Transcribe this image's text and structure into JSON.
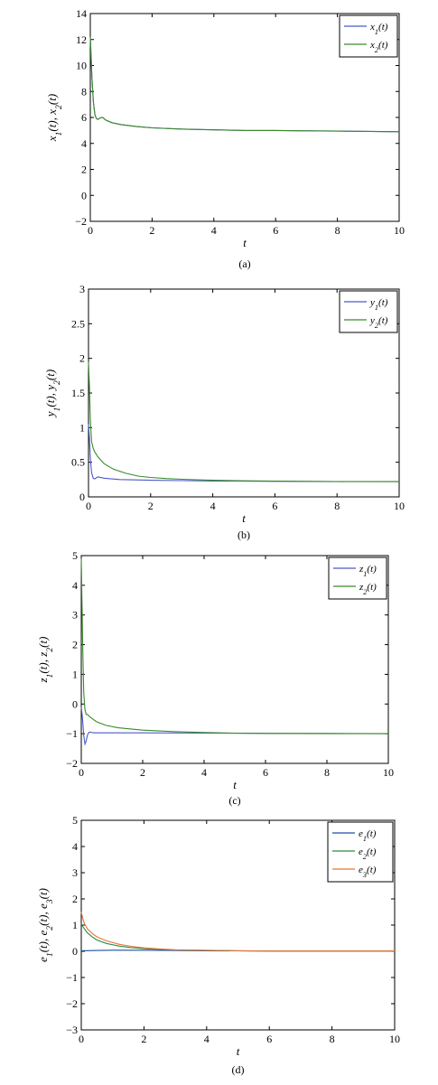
{
  "chart_data": [
    {
      "type": "line",
      "caption": "(a)",
      "xlabel": "t",
      "ylabel": "x1(t), x2(t)",
      "xlim": [
        0,
        10
      ],
      "ylim": [
        -2,
        14
      ],
      "xticks": [
        0,
        2,
        4,
        6,
        8,
        10
      ],
      "yticks": [
        -2,
        0,
        2,
        4,
        6,
        8,
        10,
        12,
        14
      ],
      "legend_position": "top-right",
      "series": [
        {
          "name": "x1(t)",
          "color": "#4a5ac8",
          "x": [
            0,
            0.02,
            0.05,
            0.1,
            0.15,
            0.2,
            0.25,
            0.3,
            0.4,
            0.5,
            0.7,
            1.0,
            1.5,
            2,
            3,
            4,
            5,
            6,
            7,
            8,
            9,
            10
          ],
          "y": [
            12.2,
            11.0,
            9.2,
            7.2,
            6.2,
            5.9,
            5.85,
            5.95,
            6.0,
            5.8,
            5.6,
            5.45,
            5.3,
            5.2,
            5.1,
            5.05,
            5.0,
            5.0,
            4.97,
            4.95,
            4.93,
            4.9
          ]
        },
        {
          "name": "x2(t)",
          "color": "#3a8a2a",
          "x": [
            0,
            0.02,
            0.05,
            0.1,
            0.15,
            0.2,
            0.25,
            0.3,
            0.4,
            0.5,
            0.7,
            1.0,
            1.5,
            2,
            3,
            4,
            5,
            6,
            7,
            8,
            9,
            10
          ],
          "y": [
            12.2,
            11.0,
            9.2,
            7.2,
            6.2,
            5.9,
            5.85,
            5.95,
            6.0,
            5.8,
            5.6,
            5.45,
            5.3,
            5.2,
            5.1,
            5.05,
            5.0,
            5.0,
            4.97,
            4.95,
            4.93,
            4.9
          ]
        }
      ]
    },
    {
      "type": "line",
      "caption": "(b)",
      "xlabel": "t",
      "ylabel": "y1(t), y2(t)",
      "xlim": [
        0,
        10
      ],
      "ylim": [
        0,
        3
      ],
      "xticks": [
        0,
        2,
        4,
        6,
        8,
        10
      ],
      "yticks": [
        0,
        0.5,
        1,
        1.5,
        2,
        2.5,
        3
      ],
      "legend_position": "top-right",
      "series": [
        {
          "name": "y1(t)",
          "color": "#4a5ac8",
          "x": [
            0,
            0.03,
            0.06,
            0.1,
            0.15,
            0.2,
            0.3,
            0.5,
            1,
            2,
            3,
            4,
            6,
            8,
            10
          ],
          "y": [
            1.05,
            0.85,
            0.55,
            0.35,
            0.27,
            0.26,
            0.29,
            0.27,
            0.25,
            0.24,
            0.235,
            0.23,
            0.225,
            0.22,
            0.22
          ]
        },
        {
          "name": "y2(t)",
          "color": "#3a8a2a",
          "x": [
            0,
            0.03,
            0.06,
            0.1,
            0.15,
            0.2,
            0.3,
            0.5,
            0.8,
            1.2,
            1.6,
            2,
            2.5,
            3,
            4,
            5,
            6,
            8,
            10
          ],
          "y": [
            1.95,
            1.6,
            1.1,
            0.8,
            0.7,
            0.65,
            0.58,
            0.48,
            0.4,
            0.34,
            0.3,
            0.28,
            0.265,
            0.255,
            0.24,
            0.232,
            0.228,
            0.222,
            0.22
          ]
        }
      ]
    },
    {
      "type": "line",
      "caption": "(c)",
      "xlabel": "t",
      "ylabel": "z1(t), z2(t)",
      "xlim": [
        0,
        10
      ],
      "ylim": [
        -2,
        5
      ],
      "xticks": [
        0,
        2,
        4,
        6,
        8,
        10
      ],
      "yticks": [
        -2,
        -1,
        0,
        1,
        2,
        3,
        4,
        5
      ],
      "legend_position": "top-right",
      "series": [
        {
          "name": "z1(t)",
          "color": "#4a5ac8",
          "x": [
            0,
            0.04,
            0.08,
            0.12,
            0.16,
            0.2,
            0.25,
            0.3,
            0.4,
            0.6,
            1,
            2,
            4,
            6,
            8,
            10
          ],
          "y": [
            -0.1,
            -0.5,
            -1.05,
            -1.35,
            -1.25,
            -1.05,
            -0.95,
            -0.95,
            -0.97,
            -0.97,
            -0.97,
            -0.97,
            -0.98,
            -0.99,
            -0.99,
            -1.0
          ]
        },
        {
          "name": "z2(t)",
          "color": "#3a8a2a",
          "x": [
            0,
            0.02,
            0.05,
            0.08,
            0.12,
            0.16,
            0.2,
            0.3,
            0.5,
            0.8,
            1.2,
            2,
            3,
            4,
            5,
            6,
            8,
            10
          ],
          "y": [
            4.9,
            3.6,
            1.8,
            0.4,
            -0.2,
            -0.35,
            -0.35,
            -0.45,
            -0.6,
            -0.72,
            -0.8,
            -0.88,
            -0.93,
            -0.96,
            -0.98,
            -0.99,
            -1.0,
            -1.0
          ]
        }
      ]
    },
    {
      "type": "line",
      "caption": "(d)",
      "xlabel": "t",
      "ylabel": "e1(t), e2(t), e3(t)",
      "xlim": [
        0,
        10
      ],
      "ylim": [
        -3,
        5
      ],
      "xticks": [
        0,
        2,
        4,
        6,
        8,
        10
      ],
      "yticks": [
        -3,
        -2,
        -1,
        0,
        1,
        2,
        3,
        4,
        5
      ],
      "legend_position": "top-right",
      "series": [
        {
          "name": "e1(t)",
          "color": "#1f4fa0",
          "x": [
            0,
            0.5,
            1,
            2,
            3,
            4,
            6,
            8,
            10
          ],
          "y": [
            0.02,
            0.03,
            0.04,
            0.04,
            0.03,
            0.02,
            0.01,
            0.01,
            0.01
          ]
        },
        {
          "name": "e2(t)",
          "color": "#2e8b3a",
          "x": [
            0,
            0.05,
            0.1,
            0.2,
            0.35,
            0.5,
            0.8,
            1.2,
            1.6,
            2,
            2.5,
            3,
            4,
            5,
            6,
            8,
            10
          ],
          "y": [
            1.05,
            0.95,
            0.85,
            0.7,
            0.55,
            0.43,
            0.3,
            0.2,
            0.14,
            0.1,
            0.07,
            0.05,
            0.03,
            0.02,
            0.01,
            0.01,
            0.01
          ]
        },
        {
          "name": "e3(t)",
          "color": "#e8743a",
          "x": [
            0,
            0.05,
            0.1,
            0.2,
            0.35,
            0.5,
            0.8,
            1.2,
            1.6,
            2,
            2.5,
            3,
            4,
            5,
            6,
            8,
            10
          ],
          "y": [
            1.5,
            1.25,
            1.05,
            0.85,
            0.68,
            0.55,
            0.4,
            0.27,
            0.19,
            0.13,
            0.09,
            0.06,
            0.04,
            0.02,
            0.01,
            0.01,
            0.01
          ]
        }
      ]
    }
  ]
}
